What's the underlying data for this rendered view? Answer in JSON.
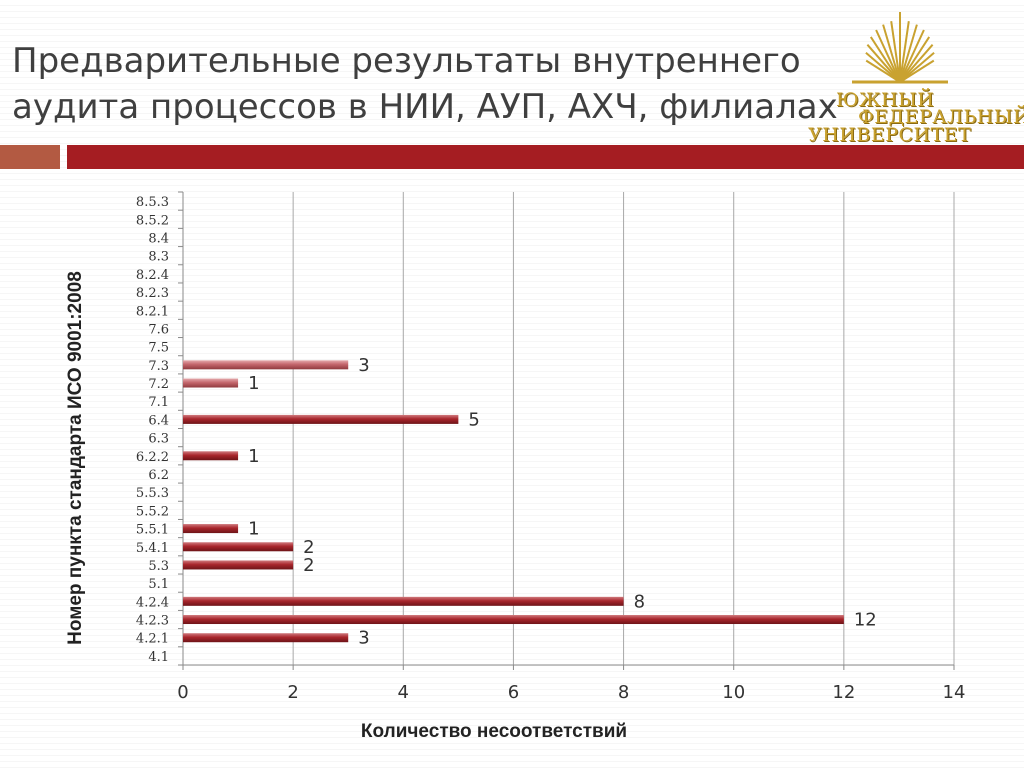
{
  "title": {
    "line1": "Предварительные результаты внутреннего",
    "line2": "аудита процессов в НИИ, АУП, АХЧ, филиалах"
  },
  "logo": {
    "line1": "ЮЖНЫЙ",
    "line2": "ФЕДЕРАЛЬНЫЙ",
    "line3": "УНИВЕРСИТЕТ"
  },
  "colors": {
    "accent_bar": "#a51d22",
    "accent_square": "#b35a42",
    "bar": "#a8262c",
    "bar_light": "#c4666c",
    "logo_gold": "#c9a230"
  },
  "chart_data": {
    "type": "bar",
    "orientation": "horizontal",
    "categories": [
      "4.1",
      "4.2.1",
      "4.2.3",
      "4.2.4",
      "5.1",
      "5.3",
      "5.4.1",
      "5.5.1",
      "5.5.2",
      "5.5.3",
      "6.2",
      "6.2.2",
      "6.3",
      "6.4",
      "7.1",
      "7.2",
      "7.3",
      "7.5",
      "7.6",
      "8.2.1",
      "8.2.3",
      "8.2.4",
      "8.3",
      "8.4",
      "8.5.2",
      "8.5.3"
    ],
    "values": [
      null,
      3,
      12,
      8,
      null,
      2,
      2,
      1,
      null,
      null,
      null,
      1,
      null,
      5,
      null,
      1,
      3,
      null,
      null,
      null,
      null,
      null,
      null,
      null,
      null,
      null
    ],
    "xlabel": "Количество несоответствий",
    "ylabel": "Номер пункта стандарта ИСО 9001:2008",
    "xlim": [
      0,
      14
    ],
    "xticks": [
      0,
      2,
      4,
      6,
      8,
      10,
      12,
      14
    ],
    "grid": "vertical",
    "data_labels": true
  }
}
